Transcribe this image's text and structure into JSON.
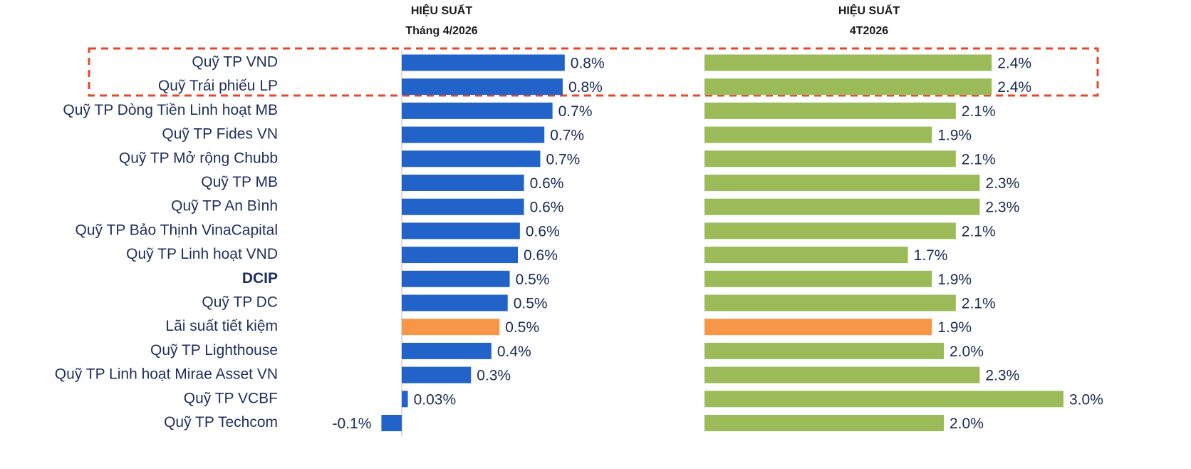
{
  "chart_data": [
    {
      "type": "hbar",
      "title": "HIỆU SUẤT",
      "subtitle": "Tháng 4/2026",
      "categories": [
        "Quỹ TP VND",
        "Quỹ  Trái phiếu LP",
        "Quỹ TP Dòng Tiền Linh hoạt MB",
        "Quỹ TP Fides VN",
        "Quỹ TP Mở rộng Chubb",
        "Quỹ TP MB",
        "Quỹ TP An Bình",
        "Quỹ TP Bảo Thịnh VinaCapital",
        "Quỹ TP Linh hoạt VND",
        "DCIP",
        "Quỹ TP DC",
        "Lãi suất tiết kiệm",
        "Quỹ TP Lighthouse",
        "Quỹ TP Linh hoạt Mirae Asset VN",
        "Quỹ TP VCBF",
        "Quỹ TP Techcom"
      ],
      "values": [
        0.8,
        0.79,
        0.74,
        0.7,
        0.68,
        0.6,
        0.6,
        0.58,
        0.57,
        0.53,
        0.52,
        0.48,
        0.44,
        0.34,
        0.03,
        -0.1
      ],
      "value_labels": [
        "0.8%",
        "0.8%",
        "0.7%",
        "0.7%",
        "0.7%",
        "0.6%",
        "0.6%",
        "0.6%",
        "0.6%",
        "0.5%",
        "0.5%",
        "0.5%",
        "0.4%",
        "0.3%",
        "0.03%",
        "-0.1%"
      ],
      "colors": [
        "#2163c9",
        "#2163c9",
        "#2163c9",
        "#2163c9",
        "#2163c9",
        "#2163c9",
        "#2163c9",
        "#2163c9",
        "#2163c9",
        "#2163c9",
        "#2163c9",
        "#f79646",
        "#2163c9",
        "#2163c9",
        "#2163c9",
        "#2163c9"
      ],
      "xlim": [
        -0.2,
        0.9
      ]
    },
    {
      "type": "hbar",
      "title": "HIỆU SUẤT",
      "subtitle": "4T2026",
      "values": [
        2.4,
        2.4,
        2.1,
        1.9,
        2.1,
        2.3,
        2.3,
        2.1,
        1.7,
        1.9,
        2.1,
        1.9,
        2.0,
        2.3,
        3.0,
        2.0
      ],
      "value_labels": [
        "2.4%",
        "2.4%",
        "2.1%",
        "1.9%",
        "2.1%",
        "2.3%",
        "2.3%",
        "2.1%",
        "1.7%",
        "1.9%",
        "2.1%",
        "1.9%",
        "2.0%",
        "2.3%",
        "3.0%",
        "2.0%"
      ],
      "colors": [
        "#9bbb59",
        "#9bbb59",
        "#9bbb59",
        "#9bbb59",
        "#9bbb59",
        "#9bbb59",
        "#9bbb59",
        "#9bbb59",
        "#9bbb59",
        "#9bbb59",
        "#9bbb59",
        "#f79646",
        "#9bbb59",
        "#9bbb59",
        "#9bbb59",
        "#9bbb59"
      ],
      "xlim": [
        0,
        3.5
      ]
    }
  ]
}
